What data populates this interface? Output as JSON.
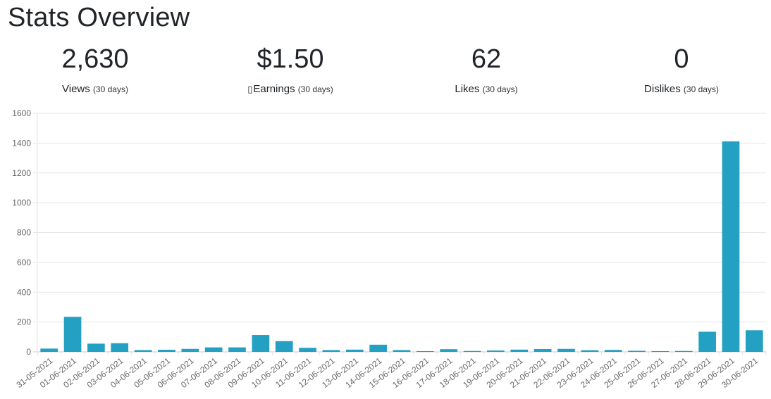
{
  "header": {
    "title": "Stats Overview"
  },
  "stats": [
    {
      "value": "2,630",
      "label": "Views",
      "note": "(30 days)",
      "icon": ""
    },
    {
      "value": "$1.50",
      "label": "Earnings",
      "note": "(30 days)",
      "icon": "▯"
    },
    {
      "value": "62",
      "label": "Likes",
      "note": "(30 days)",
      "icon": ""
    },
    {
      "value": "0",
      "label": "Dislikes",
      "note": "(30 days)",
      "icon": ""
    }
  ],
  "colors": {
    "bar": "#24a0c2",
    "grid": "#e5e5e5",
    "axis": "#cccccc"
  },
  "chart_data": {
    "type": "bar",
    "categories": [
      "31-05-2021",
      "01-06-2021",
      "02-06-2021",
      "03-06-2021",
      "04-06-2021",
      "05-06-2021",
      "06-06-2021",
      "07-06-2021",
      "08-06-2021",
      "09-06-2021",
      "10-06-2021",
      "11-06-2021",
      "12-06-2021",
      "13-06-2021",
      "14-06-2021",
      "15-06-2021",
      "16-06-2021",
      "17-06-2021",
      "18-06-2021",
      "19-06-2021",
      "20-06-2021",
      "21-06-2021",
      "22-06-2021",
      "23-06-2021",
      "24-06-2021",
      "25-06-2021",
      "26-06-2021",
      "27-06-2021",
      "28-06-2021",
      "29-06-2021",
      "30-06-2021"
    ],
    "values": [
      22,
      235,
      55,
      58,
      12,
      14,
      20,
      30,
      30,
      113,
      72,
      27,
      12,
      15,
      48,
      12,
      5,
      18,
      6,
      9,
      15,
      19,
      20,
      11,
      13,
      7,
      5,
      6,
      135,
      1412,
      145
    ],
    "yticks": [
      "0",
      "200",
      "400",
      "600",
      "800",
      "1000",
      "1200",
      "1400",
      "1600"
    ],
    "ylim": [
      0,
      1600
    ],
    "grid": true,
    "legend": "none"
  }
}
